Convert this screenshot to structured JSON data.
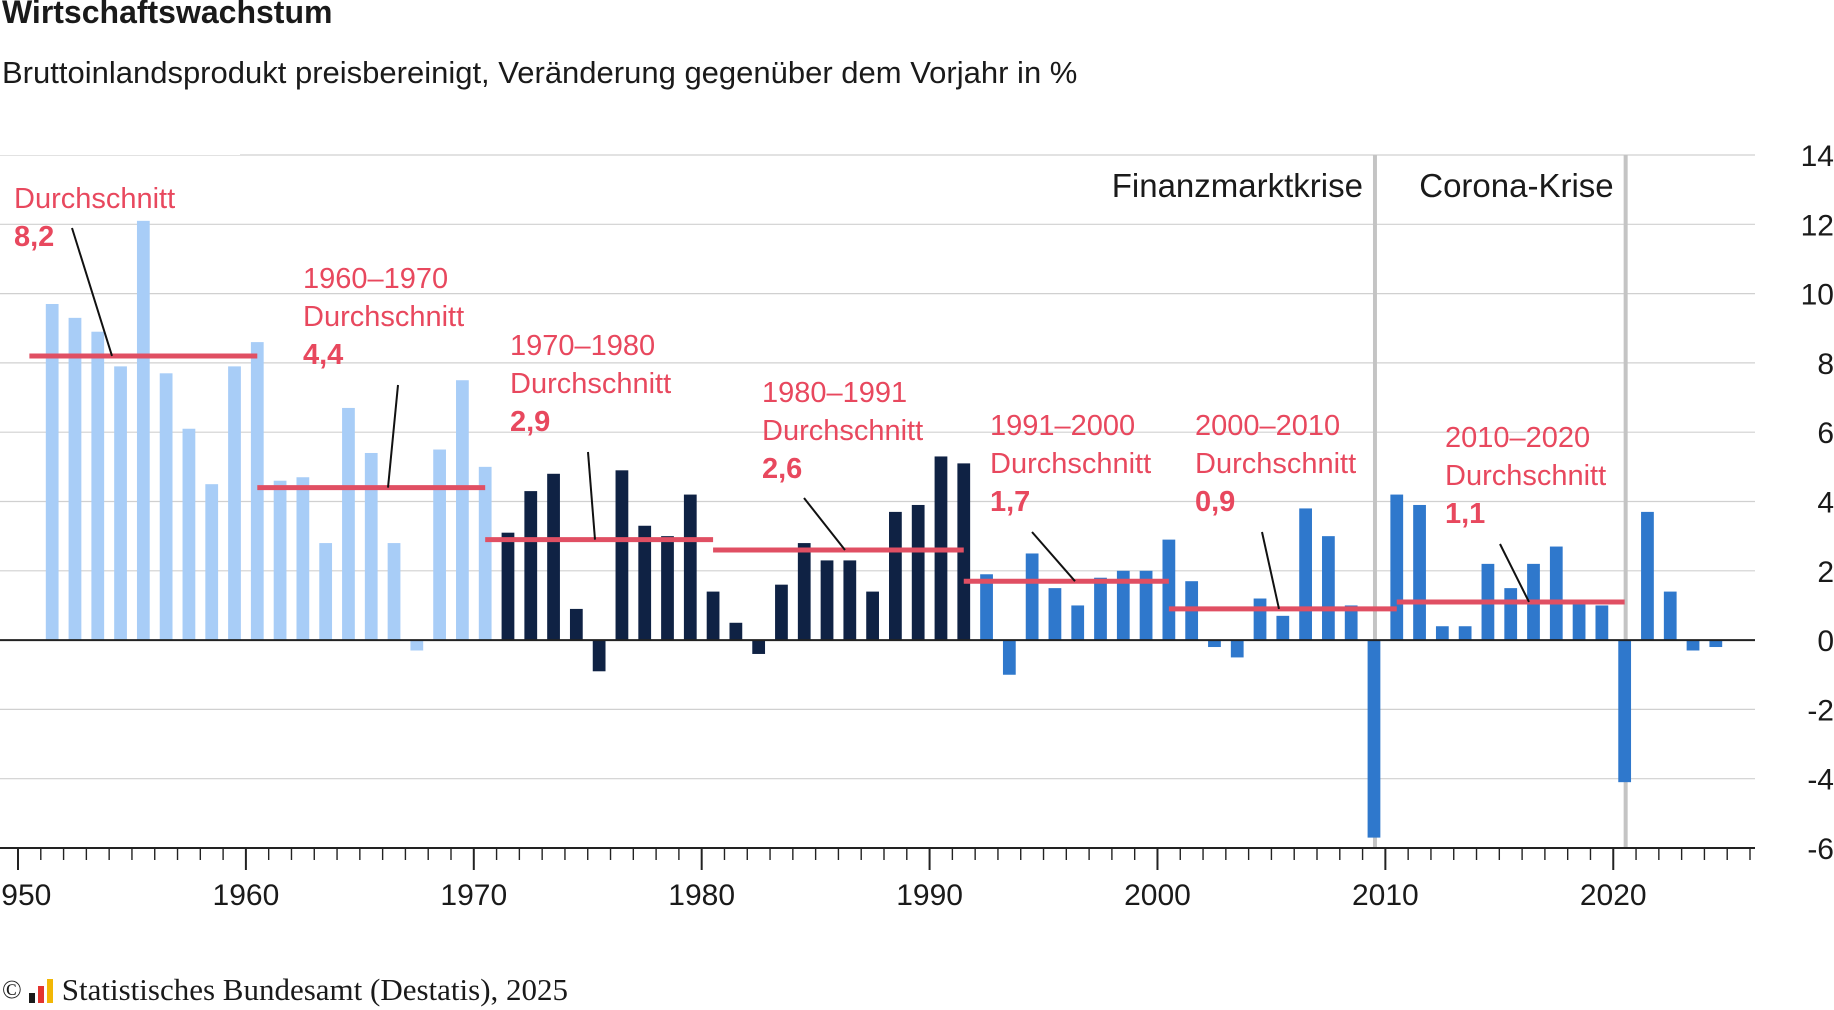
{
  "chart_data": {
    "type": "bar",
    "title": "Wirtschaftswachstum",
    "subtitle": "Bruttoinlandsprodukt preisbereinigt, Veränderung gegenüber dem Vorjahr in %",
    "x": [
      1951,
      1952,
      1953,
      1954,
      1955,
      1956,
      1957,
      1958,
      1959,
      1960,
      1961,
      1962,
      1963,
      1964,
      1965,
      1966,
      1967,
      1968,
      1969,
      1970,
      1971,
      1972,
      1973,
      1974,
      1975,
      1976,
      1977,
      1978,
      1979,
      1980,
      1981,
      1982,
      1983,
      1984,
      1985,
      1986,
      1987,
      1988,
      1989,
      1990,
      1991,
      1992,
      1993,
      1994,
      1995,
      1996,
      1997,
      1998,
      1999,
      2000,
      2001,
      2002,
      2003,
      2004,
      2005,
      2006,
      2007,
      2008,
      2009,
      2010,
      2011,
      2012,
      2013,
      2014,
      2015,
      2016,
      2017,
      2018,
      2019,
      2020,
      2021,
      2022,
      2023,
      2024
    ],
    "values": [
      9.7,
      9.3,
      8.9,
      7.9,
      12.1,
      7.7,
      6.1,
      4.5,
      7.9,
      8.6,
      4.6,
      4.7,
      2.8,
      6.7,
      5.4,
      2.8,
      -0.3,
      5.5,
      7.5,
      5.0,
      3.1,
      4.3,
      4.8,
      0.9,
      -0.9,
      4.9,
      3.3,
      3.0,
      4.2,
      1.4,
      0.5,
      -0.4,
      1.6,
      2.8,
      2.3,
      2.3,
      1.4,
      3.7,
      3.9,
      5.3,
      5.1,
      1.9,
      -1.0,
      2.5,
      1.5,
      1.0,
      1.8,
      2.0,
      2.0,
      2.9,
      1.7,
      -0.2,
      -0.5,
      1.2,
      0.7,
      3.8,
      3.0,
      1.0,
      -5.7,
      4.2,
      3.9,
      0.4,
      0.4,
      2.2,
      1.5,
      2.2,
      2.7,
      1.1,
      1.0,
      -4.1,
      3.7,
      1.4,
      -0.3,
      -0.2
    ],
    "periods": [
      {
        "label": "",
        "mean_label": "Durchschnitt",
        "mean": 8.2,
        "mean_text": "8,2",
        "from": 1951,
        "to": 1960,
        "color": "#a8cdf7"
      },
      {
        "label": "1960–1970",
        "mean_label": "Durchschnitt",
        "mean": 4.4,
        "mean_text": "4,4",
        "from": 1961,
        "to": 1970,
        "color": "#a8cdf7"
      },
      {
        "label": "1970–1980",
        "mean_label": "Durchschnitt",
        "mean": 2.9,
        "mean_text": "2,9",
        "from": 1971,
        "to": 1980,
        "color": "#0f2244"
      },
      {
        "label": "1980–1991",
        "mean_label": "Durchschnitt",
        "mean": 2.6,
        "mean_text": "2,6",
        "from": 1981,
        "to": 1991,
        "color": "#0f2244"
      },
      {
        "label": "1991–2000",
        "mean_label": "Durchschnitt",
        "mean": 1.7,
        "mean_text": "1,7",
        "from": 1992,
        "to": 2000,
        "color": "#2f78cc"
      },
      {
        "label": "2000–2010",
        "mean_label": "Durchschnitt",
        "mean": 0.9,
        "mean_text": "0,9",
        "from": 2001,
        "to": 2010,
        "color": "#2f78cc"
      },
      {
        "label": "2010–2020",
        "mean_label": "Durchschnitt",
        "mean": 1.1,
        "mean_text": "1,1",
        "from": 2011,
        "to": 2020,
        "color": "#2f78cc"
      }
    ],
    "crises": [
      {
        "label": "Finanzmarktkrise",
        "year": 2009
      },
      {
        "label": "Corona-Krise",
        "year": 2020
      }
    ],
    "xticks": [
      1950,
      1960,
      1970,
      1980,
      1990,
      2000,
      2010,
      2020
    ],
    "yticks": [
      -6,
      -4,
      -2,
      0,
      2,
      4,
      6,
      8,
      10,
      12,
      14
    ],
    "ylim": [
      -6,
      14
    ],
    "xlim": [
      1950,
      2026
    ],
    "grid": true,
    "y_axis_side": "right",
    "colors": {
      "mean_line": "#e04f63",
      "annotation": "#e8485e",
      "grid": "#d0d0d0",
      "crisis_line": "#c4c4c4",
      "axis": "#222222",
      "text": "#1a1a1a"
    }
  },
  "footer": {
    "copyright": "©",
    "logo_icon": "destatis-logo-icon",
    "source": "Statistisches Bundesamt (Destatis), 2025"
  }
}
